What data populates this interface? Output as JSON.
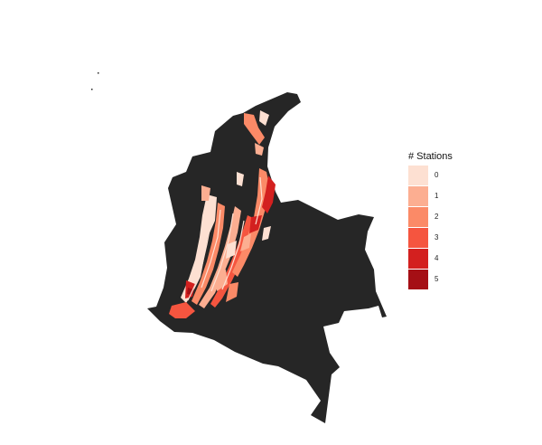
{
  "legend": {
    "title": "# Stations",
    "items": [
      {
        "label": "0",
        "color": "#fde0d2"
      },
      {
        "label": "1",
        "color": "#fcae91"
      },
      {
        "label": "2",
        "color": "#fb8a67"
      },
      {
        "label": "3",
        "color": "#f5553f"
      },
      {
        "label": "4",
        "color": "#d3201f"
      },
      {
        "label": "5",
        "color": "#a50f15"
      }
    ]
  },
  "colors": {
    "land": "#262626",
    "background": "#ffffff"
  }
}
